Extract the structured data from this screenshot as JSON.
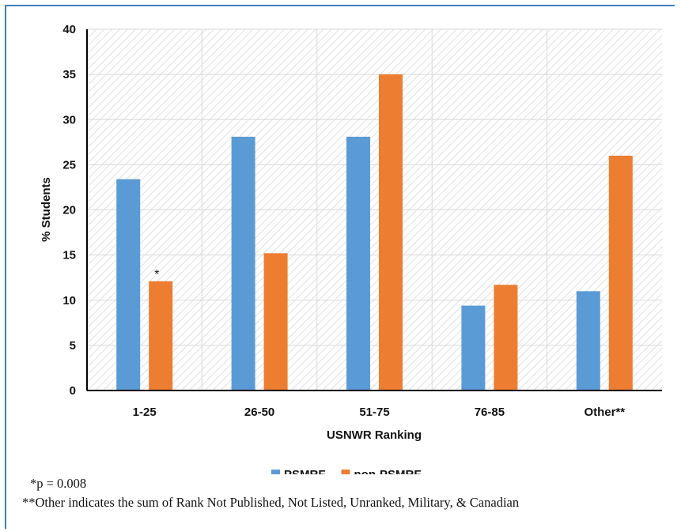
{
  "chart_data": {
    "type": "bar",
    "title": "",
    "xlabel": "USNWR Ranking",
    "ylabel": "% Students",
    "ylim": [
      0,
      40
    ],
    "yticks": [
      0,
      5,
      10,
      15,
      20,
      25,
      30,
      35,
      40
    ],
    "categories": [
      "1-25",
      "26-50",
      "51-75",
      "76-85",
      "Other**"
    ],
    "series": [
      {
        "name": "PSMRF",
        "color": "#5b9bd5",
        "values": [
          23.4,
          28.1,
          28.1,
          9.4,
          11.0
        ]
      },
      {
        "name": "non-PSMRF",
        "color": "#ed7d31",
        "values": [
          12.1,
          15.2,
          35.0,
          11.7,
          26.0
        ]
      }
    ],
    "annotations": [
      {
        "text": "*",
        "category": "1-25",
        "series": "non-PSMRF"
      }
    ],
    "grid": true,
    "legend": "bottom-center"
  },
  "notes": {
    "note1": "*p = 0.008",
    "note2": "**Other indicates the sum of Rank Not Published, Not Listed, Unranked, Military, & Canadian"
  },
  "colors": {
    "frame": "#3d7fc1",
    "gridline": "#d9d9d9",
    "axis": "#000000"
  }
}
